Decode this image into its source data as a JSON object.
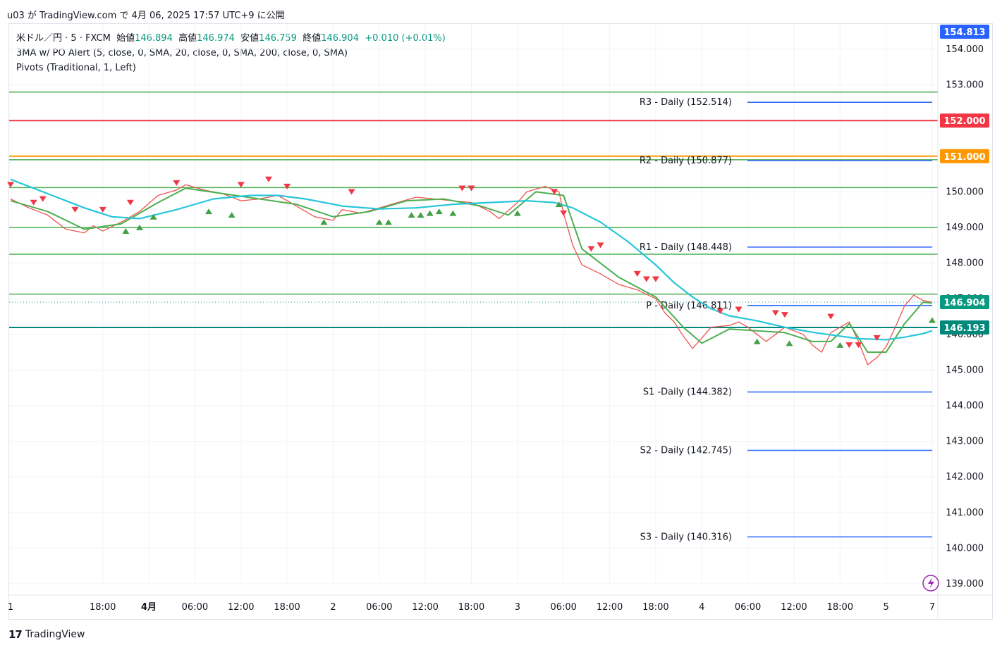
{
  "header": {
    "publish_line": "u03 が TradingView.com で 4月 06, 2025 17:57 UTC+9 に公開"
  },
  "legend": {
    "symbol": "米ドル／円 · 5 · FXCM",
    "open_label": "始値",
    "open": "146.894",
    "high_label": "高値",
    "high": "146.974",
    "low_label": "安値",
    "low": "146.759",
    "close_label": "終値",
    "close": "146.904",
    "change": "+0.010 (+0.01%)",
    "indicator1": "3MA w/ PO Alert (5, close, 0, SMA, 20, close, 0, SMA, 200, close, 0, SMA)",
    "indicator2": "Pivots (Traditional, 1, Left)"
  },
  "footer": {
    "brand": "TradingView",
    "logo": "17"
  },
  "colors": {
    "up": "#089981",
    "down": "#f23645",
    "ma5": "#ef5350",
    "ma20": "#4caf50",
    "ma200": "#26c6da",
    "pivot": "#2962ff",
    "hline_green": "#4caf50",
    "hline_red": "#f23645",
    "hline_orange": "#ff9800",
    "hline_teal": "#00897b",
    "tag_blue": "#2962ff",
    "tag_red": "#f23645",
    "tag_orange": "#ff9800",
    "tag_green": "#089981",
    "tag_teal": "#00897b"
  },
  "chart_data": {
    "type": "line",
    "ylim": [
      138.8,
      154.9
    ],
    "y_ticks": [
      "154.000",
      "153.000",
      "152.000",
      "151.000",
      "150.000",
      "149.000",
      "148.000",
      "147.000",
      "146.000",
      "145.000",
      "144.000",
      "143.000",
      "142.000",
      "141.000",
      "140.000",
      "139.000"
    ],
    "x_ticks": [
      {
        "label": "1",
        "t": 0
      },
      {
        "label": "18:00",
        "t": 10
      },
      {
        "label": "4月",
        "t": 15
      },
      {
        "label": "06:00",
        "t": 20
      },
      {
        "label": "12:00",
        "t": 25
      },
      {
        "label": "18:00",
        "t": 30
      },
      {
        "label": "2",
        "t": 35
      },
      {
        "label": "06:00",
        "t": 40
      },
      {
        "label": "12:00",
        "t": 45
      },
      {
        "label": "18:00",
        "t": 50
      },
      {
        "label": "3",
        "t": 55
      },
      {
        "label": "06:00",
        "t": 60
      },
      {
        "label": "12:00",
        "t": 65
      },
      {
        "label": "18:00",
        "t": 70
      },
      {
        "label": "4",
        "t": 75
      },
      {
        "label": "06:00",
        "t": 80
      },
      {
        "label": "12:00",
        "t": 85
      },
      {
        "label": "18:00",
        "t": 90
      },
      {
        "label": "5",
        "t": 95
      },
      {
        "label": "7",
        "t": 100
      }
    ],
    "horizontal_lines": [
      {
        "price": 152.8,
        "color": "#4caf50"
      },
      {
        "price": 152.0,
        "color": "#f23645",
        "tag": "152.000",
        "tag_color": "#f23645"
      },
      {
        "price": 151.0,
        "color": "#ff9800",
        "tag": "151.000",
        "tag_color": "#ff9800"
      },
      {
        "price": 150.9,
        "color": "#4caf50"
      },
      {
        "price": 150.12,
        "color": "#4caf50"
      },
      {
        "price": 149.0,
        "color": "#4caf50"
      },
      {
        "price": 148.25,
        "color": "#4caf50"
      },
      {
        "price": 147.13,
        "color": "#4caf50"
      },
      {
        "price": 146.193,
        "color": "#00897b",
        "tag": "146.193",
        "tag_color": "#00897b"
      }
    ],
    "current_price": {
      "price": 146.904,
      "tag": "146.904",
      "tag_color": "#089981"
    },
    "top_tag": {
      "tag": "154.813",
      "tag_color": "#2962ff"
    },
    "pivots": [
      {
        "label": "R3 - Daily (152.514)",
        "price": 152.514
      },
      {
        "label": "R2 - Daily (150.877)",
        "price": 150.877
      },
      {
        "label": "R1 - Daily (148.448)",
        "price": 148.448
      },
      {
        "label": "P - Daily (146.811)",
        "price": 146.811
      },
      {
        "label": "S1 -Daily (144.382)",
        "price": 144.382
      },
      {
        "label": "S2 - Daily (142.745)",
        "price": 142.745
      },
      {
        "label": "S3 - Daily (140.316)",
        "price": 140.316
      }
    ],
    "series": [
      {
        "name": "price",
        "values": [
          [
            0,
            149.8
          ],
          [
            2,
            149.55
          ],
          [
            4,
            149.35
          ],
          [
            6,
            148.95
          ],
          [
            8,
            148.85
          ],
          [
            9,
            149.05
          ],
          [
            10,
            148.9
          ],
          [
            12,
            149.15
          ],
          [
            14,
            149.45
          ],
          [
            16,
            149.9
          ],
          [
            18,
            150.05
          ],
          [
            19,
            150.2
          ],
          [
            21,
            150.05
          ],
          [
            23,
            149.95
          ],
          [
            25,
            149.75
          ],
          [
            27,
            149.8
          ],
          [
            29,
            149.9
          ],
          [
            31,
            149.6
          ],
          [
            33,
            149.3
          ],
          [
            35,
            149.2
          ],
          [
            36,
            149.5
          ],
          [
            38,
            149.4
          ],
          [
            40,
            149.55
          ],
          [
            42,
            149.7
          ],
          [
            44,
            149.85
          ],
          [
            46,
            149.8
          ],
          [
            48,
            149.75
          ],
          [
            50,
            149.7
          ],
          [
            52,
            149.45
          ],
          [
            53,
            149.25
          ],
          [
            55,
            149.7
          ],
          [
            56,
            150.0
          ],
          [
            58,
            150.15
          ],
          [
            59.5,
            150.0
          ],
          [
            60,
            149.4
          ],
          [
            61,
            148.5
          ],
          [
            62,
            147.95
          ],
          [
            64,
            147.7
          ],
          [
            66,
            147.4
          ],
          [
            68,
            147.25
          ],
          [
            70,
            147.0
          ],
          [
            71,
            146.6
          ],
          [
            72,
            146.35
          ],
          [
            73,
            145.95
          ],
          [
            74,
            145.6
          ],
          [
            75,
            145.9
          ],
          [
            76,
            146.2
          ],
          [
            78,
            146.25
          ],
          [
            79,
            146.35
          ],
          [
            80,
            146.2
          ],
          [
            81,
            146.0
          ],
          [
            82,
            145.8
          ],
          [
            83,
            146.0
          ],
          [
            84,
            146.2
          ],
          [
            86,
            146.0
          ],
          [
            87,
            145.7
          ],
          [
            88,
            145.5
          ],
          [
            89,
            146.05
          ],
          [
            91,
            146.35
          ],
          [
            92,
            145.8
          ],
          [
            93,
            145.15
          ],
          [
            94,
            145.35
          ],
          [
            95,
            145.65
          ],
          [
            96,
            146.2
          ],
          [
            97,
            146.8
          ],
          [
            98,
            147.1
          ],
          [
            99,
            146.95
          ],
          [
            100,
            146.9
          ]
        ]
      },
      {
        "name": "sma20",
        "values": [
          [
            0,
            149.75
          ],
          [
            4,
            149.45
          ],
          [
            8,
            148.95
          ],
          [
            12,
            149.1
          ],
          [
            16,
            149.7
          ],
          [
            19,
            150.1
          ],
          [
            23,
            149.95
          ],
          [
            27,
            149.8
          ],
          [
            31,
            149.65
          ],
          [
            35,
            149.3
          ],
          [
            39,
            149.45
          ],
          [
            43,
            149.75
          ],
          [
            47,
            149.8
          ],
          [
            51,
            149.6
          ],
          [
            54,
            149.35
          ],
          [
            57,
            150.0
          ],
          [
            60,
            149.9
          ],
          [
            62,
            148.4
          ],
          [
            66,
            147.6
          ],
          [
            70,
            147.05
          ],
          [
            73,
            146.2
          ],
          [
            75,
            145.75
          ],
          [
            78,
            146.15
          ],
          [
            81,
            146.1
          ],
          [
            84,
            146.05
          ],
          [
            87,
            145.8
          ],
          [
            89,
            145.8
          ],
          [
            91,
            146.3
          ],
          [
            93,
            145.5
          ],
          [
            95,
            145.5
          ],
          [
            97,
            146.3
          ],
          [
            99,
            146.9
          ],
          [
            100,
            146.88
          ]
        ]
      },
      {
        "name": "sma200",
        "values": [
          [
            0,
            150.35
          ],
          [
            4,
            149.95
          ],
          [
            8,
            149.55
          ],
          [
            11,
            149.3
          ],
          [
            14,
            149.25
          ],
          [
            18,
            149.5
          ],
          [
            22,
            149.8
          ],
          [
            26,
            149.9
          ],
          [
            29,
            149.9
          ],
          [
            32,
            149.8
          ],
          [
            36,
            149.6
          ],
          [
            40,
            149.52
          ],
          [
            44,
            149.55
          ],
          [
            48,
            149.65
          ],
          [
            52,
            149.7
          ],
          [
            56,
            149.75
          ],
          [
            59,
            149.7
          ],
          [
            61,
            149.55
          ],
          [
            64,
            149.15
          ],
          [
            67,
            148.6
          ],
          [
            70,
            147.95
          ],
          [
            72,
            147.45
          ],
          [
            74,
            147.05
          ],
          [
            76,
            146.72
          ],
          [
            78,
            146.52
          ],
          [
            81,
            146.38
          ],
          [
            84,
            146.2
          ],
          [
            87,
            146.06
          ],
          [
            90,
            145.95
          ],
          [
            92,
            145.88
          ],
          [
            95,
            145.85
          ],
          [
            97,
            145.92
          ],
          [
            99,
            146.02
          ],
          [
            100,
            146.1
          ]
        ]
      }
    ],
    "signals": {
      "down": [
        [
          0,
          150.0
        ],
        [
          2.5,
          149.5
        ],
        [
          3.5,
          149.6
        ],
        [
          7,
          149.3
        ],
        [
          10,
          149.3
        ],
        [
          13,
          149.5
        ],
        [
          18,
          150.05
        ],
        [
          25,
          150.0
        ],
        [
          28,
          150.15
        ],
        [
          30,
          149.95
        ],
        [
          37,
          149.8
        ],
        [
          49,
          149.9
        ],
        [
          50,
          149.9
        ],
        [
          59,
          149.8
        ],
        [
          60,
          149.2
        ],
        [
          63,
          148.2
        ],
        [
          64,
          148.3
        ],
        [
          68,
          147.5
        ],
        [
          69,
          147.35
        ],
        [
          70,
          147.35
        ],
        [
          77,
          146.45
        ],
        [
          79,
          146.5
        ],
        [
          83,
          146.4
        ],
        [
          84,
          146.35
        ],
        [
          89,
          146.3
        ],
        [
          91,
          145.5
        ],
        [
          92,
          145.5
        ],
        [
          94,
          145.7
        ]
      ],
      "up": [
        [
          12.5,
          149.1
        ],
        [
          14,
          149.2
        ],
        [
          15.5,
          149.5
        ],
        [
          21.5,
          149.65
        ],
        [
          24,
          149.55
        ],
        [
          34,
          149.35
        ],
        [
          40,
          149.35
        ],
        [
          41,
          149.35
        ],
        [
          43.5,
          149.55
        ],
        [
          44.5,
          149.55
        ],
        [
          45.5,
          149.6
        ],
        [
          46.5,
          149.65
        ],
        [
          48,
          149.6
        ],
        [
          55,
          149.6
        ],
        [
          59.5,
          149.85
        ],
        [
          81,
          146.0
        ],
        [
          84.5,
          145.95
        ],
        [
          90,
          145.9
        ],
        [
          100,
          146.6
        ]
      ]
    }
  }
}
